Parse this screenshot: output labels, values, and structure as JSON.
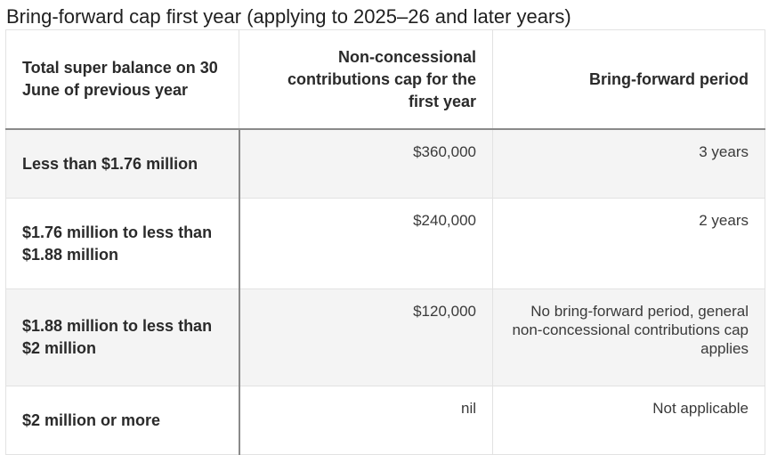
{
  "title": "Bring-forward cap first year (applying to 2025–26 and later years)",
  "table": {
    "headers": [
      "Total super balance on 30 June of previous year",
      "Non-concessional contributions cap for the first year",
      "Bring-forward period"
    ],
    "rows": [
      {
        "balance": "Less than $1.76 million",
        "cap": "$360,000",
        "period": "3 years"
      },
      {
        "balance": "$1.76 million to less than $1.88 million",
        "cap": "$240,000",
        "period": "2 years"
      },
      {
        "balance": "$1.88 million to less than $2 million",
        "cap": "$120,000",
        "period": "No bring-forward period, general non-concessional contributions cap applies"
      },
      {
        "balance": "$2 million or more",
        "cap": "nil",
        "period": "Not applicable"
      }
    ]
  }
}
